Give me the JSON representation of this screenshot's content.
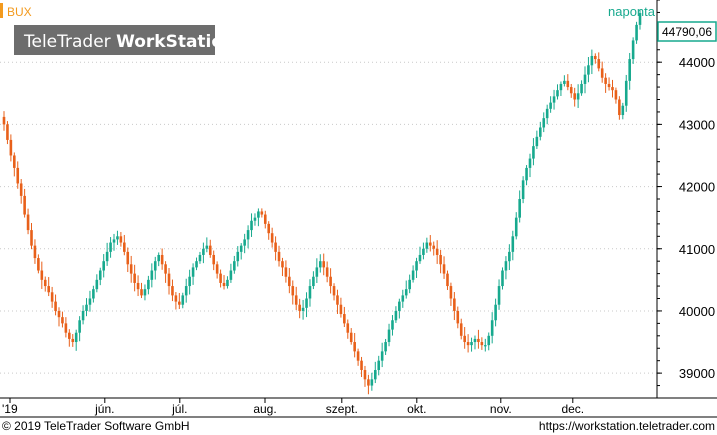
{
  "app": {
    "brand_text": "TeleTrader",
    "brand_strong": "WorkStation",
    "footer_left": "© 2019 TeleTrader Software GmbH",
    "footer_right": "https://workstation.teletrader.com"
  },
  "colors": {
    "up": "#17a98e",
    "down": "#e8601a",
    "grid": "#c9c9c9",
    "accent": "#f39a1e",
    "last_price_border": "#17a98e",
    "watermark_bg": "#6d6d6d"
  },
  "chart_data": {
    "type": "candlestick",
    "symbol": "BUX",
    "interval": "naponta",
    "last_price": "44790,06",
    "last_value": 44790.06,
    "ylim": [
      38600,
      45000
    ],
    "yticks": [
      39000,
      40000,
      41000,
      42000,
      43000,
      44000
    ],
    "ytick_labels": [
      "39000",
      "40000",
      "41000",
      "42000",
      "43000",
      "44000"
    ],
    "x_labels": [
      "'19",
      "jún.",
      "júl.",
      "aug.",
      "szept.",
      "okt.",
      "nov.",
      "dec."
    ],
    "grid": true,
    "closes": [
      43000,
      42750,
      42500,
      42300,
      42050,
      41850,
      41550,
      41300,
      41050,
      40850,
      40650,
      40500,
      40400,
      40300,
      40150,
      40000,
      39900,
      39800,
      39650,
      39550,
      39500,
      39650,
      39850,
      40000,
      40100,
      40200,
      40350,
      40500,
      40650,
      40800,
      40950,
      41100,
      41150,
      41200,
      41100,
      40950,
      40750,
      40600,
      40450,
      40350,
      40250,
      40350,
      40500,
      40650,
      40800,
      40900,
      40750,
      40600,
      40400,
      40250,
      40150,
      40100,
      40250,
      40400,
      40550,
      40700,
      40800,
      40900,
      41000,
      41050,
      40900,
      40750,
      40600,
      40450,
      40400,
      40500,
      40650,
      40800,
      40950,
      41050,
      41150,
      41300,
      41450,
      41500,
      41600,
      41550,
      41400,
      41250,
      41100,
      40950,
      40800,
      40700,
      40550,
      40400,
      40250,
      40100,
      40000,
      40050,
      40200,
      40400,
      40550,
      40700,
      40800,
      40700,
      40550,
      40400,
      40250,
      40100,
      39950,
      39800,
      39650,
      39500,
      39350,
      39200,
      39050,
      38900,
      38800,
      38900,
      39050,
      39200,
      39350,
      39500,
      39700,
      39850,
      40000,
      40150,
      40250,
      40350,
      40500,
      40650,
      40800,
      40900,
      41000,
      41100,
      41050,
      41000,
      40900,
      40750,
      40600,
      40400,
      40200,
      40000,
      39800,
      39600,
      39500,
      39450,
      39500,
      39550,
      39500,
      39450,
      39450,
      39600,
      39850,
      40100,
      40400,
      40650,
      40800,
      40950,
      41200,
      41500,
      41800,
      42100,
      42300,
      42450,
      42650,
      42800,
      42950,
      43100,
      43250,
      43350,
      43450,
      43550,
      43650,
      43700,
      43600,
      43500,
      43400,
      43500,
      43650,
      43800,
      43950,
      44100,
      44050,
      43900,
      43750,
      43650,
      43600,
      43550,
      43400,
      43150,
      43300,
      43700,
      44050,
      44350,
      44600,
      44790
    ]
  }
}
